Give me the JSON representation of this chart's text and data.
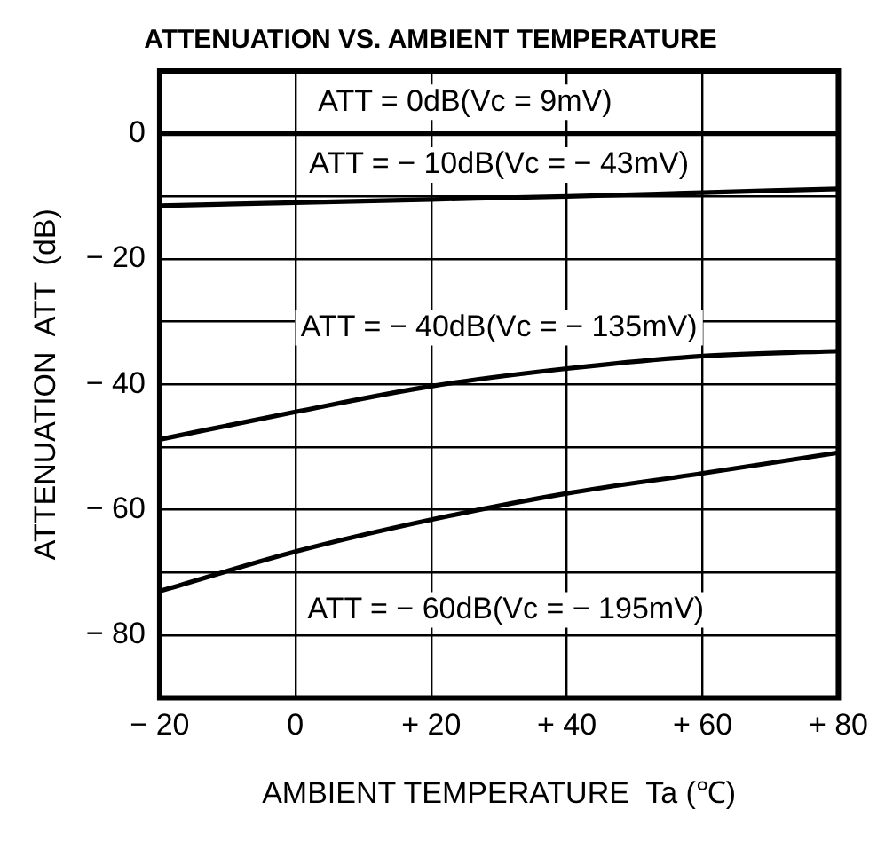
{
  "chart_data": {
    "type": "line",
    "title": "ATTENUATION VS. AMBIENT TEMPERATURE",
    "xlabel": "AMBIENT TEMPERATURE  Ta (℃)",
    "ylabel": "ATTENUATION  ATT  (dB)",
    "x": [
      -20,
      0,
      20,
      40,
      60,
      80
    ],
    "series": [
      {
        "color": "#000000",
        "values": [
          0,
          0,
          0,
          0,
          0,
          0
        ]
      },
      {
        "color": "#000000",
        "values": [
          -11.5,
          -11,
          -10.5,
          -10,
          -9.4,
          -8.8
        ]
      },
      {
        "color": "#000000",
        "values": [
          -48.8,
          -44.4,
          -40.3,
          -37.5,
          -35.5,
          -34.7
        ]
      },
      {
        "color": "#000000",
        "values": [
          -73,
          -66.7,
          -61.6,
          -57.4,
          -54.2,
          -50.9
        ]
      }
    ],
    "xlim": [
      -20,
      80
    ],
    "xticks": [
      {
        "value": -20,
        "label": "− 20"
      },
      0,
      {
        "value": 20,
        "label": "+ 20"
      },
      {
        "value": 40,
        "label": "+ 40"
      },
      {
        "value": 60,
        "label": "+ 60"
      },
      {
        "value": 80,
        "label": "+ 80"
      }
    ],
    "ylim": [
      -90,
      10
    ],
    "yticks": [
      {
        "value": -80,
        "label": "− 80"
      },
      {
        "value": -70,
        "label": null
      },
      {
        "value": -60,
        "label": "− 60"
      },
      {
        "value": -50,
        "label": null
      },
      {
        "value": -40,
        "label": "− 40"
      },
      {
        "value": -30,
        "label": null
      },
      {
        "value": -20,
        "label": "− 20"
      },
      {
        "value": -10,
        "label": null
      },
      0
    ],
    "grid": true,
    "legend": false,
    "marker": "none",
    "line_style": "solid",
    "annotations": [
      "ATT = 0dB(Vc = 9mV)",
      "ATT = − 10dB(Vc = − 43mV)",
      "ATT = − 40dB(Vc = − 135mV)",
      "ATT = − 60dB(Vc = − 195mV)"
    ]
  }
}
